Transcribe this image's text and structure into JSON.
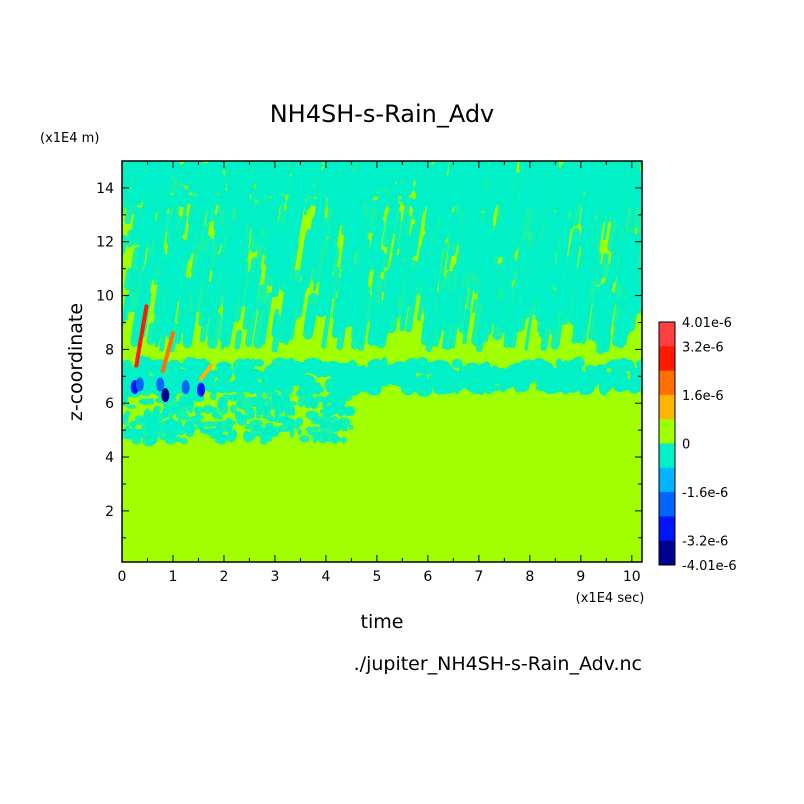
{
  "chart_data": {
    "type": "heatmap",
    "title": "NH4SH-s-Rain_Adv",
    "xlabel": "time",
    "ylabel": "z-coordinate",
    "x_unit": "(x1E4 sec)",
    "y_unit": "(x1E4 m)",
    "source_file": "./jupiter_NH4SH-s-Rain_Adv.nc",
    "xlim": [
      0,
      10.2
    ],
    "ylim": [
      0.1,
      15
    ],
    "x_ticks": [
      0,
      1,
      2,
      3,
      4,
      5,
      6,
      7,
      8,
      9,
      10
    ],
    "y_ticks": [
      2,
      4,
      6,
      8,
      10,
      12,
      14
    ],
    "colorbar": {
      "range": [
        -4.01e-06,
        4.01e-06
      ],
      "labels": [
        "4.01e-6",
        "3.2e-6",
        "1.6e-6",
        "0",
        "-1.6e-6",
        "-3.2e-6",
        "-4.01e-6"
      ],
      "levels": [
        {
          "value": 3.6e-06,
          "color": "#ff4040"
        },
        {
          "value": 2.8e-06,
          "color": "#ff1a00"
        },
        {
          "value": 2e-06,
          "color": "#ff7000"
        },
        {
          "value": 1.2e-06,
          "color": "#ffb400"
        },
        {
          "value": 4e-07,
          "color": "#a0ff00"
        },
        {
          "value": -4e-07,
          "color": "#00f0c8"
        },
        {
          "value": -1.2e-06,
          "color": "#00b4ff"
        },
        {
          "value": -2e-06,
          "color": "#0064ff"
        },
        {
          "value": -2.8e-06,
          "color": "#0014ff"
        },
        {
          "value": -3.6e-06,
          "color": "#000090"
        }
      ]
    },
    "background_color": "#a0ff00",
    "field_summary": [
      {
        "region": "z < 5",
        "value": 0
      },
      {
        "region": "z 6.5–7.5 persistent negative band",
        "value": -6e-07
      },
      {
        "region": "z 8–15 scattered weak negative streaks",
        "value": -5e-07
      },
      {
        "region": "t 0.2–1.6, z 7.5–9.5 positive streaks",
        "value": 3.5e-06
      },
      {
        "region": "t 0.2–1.6, z 6–6.8 negative spots",
        "value": -3.8e-06
      }
    ]
  }
}
